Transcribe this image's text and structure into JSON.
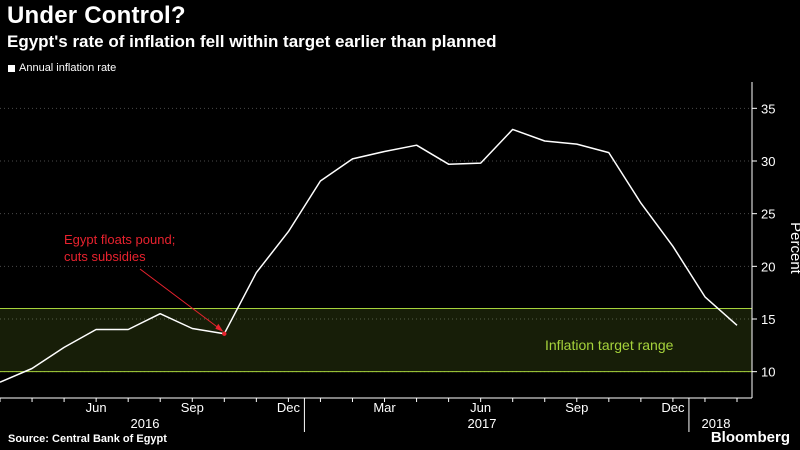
{
  "chart_data": {
    "type": "line",
    "title": "Under Control?",
    "subtitle": "Egypt's rate of inflation fell within target earlier than planned",
    "ylabel": "Percent",
    "ylim": [
      7.5,
      37.5
    ],
    "yticks": [
      10,
      15,
      20,
      25,
      30,
      35
    ],
    "grid": "horizontal-dotted",
    "legend": "top-left",
    "series": [
      {
        "name": "Annual inflation rate",
        "color": "#ffffff",
        "x": [
          "2016-03",
          "2016-04",
          "2016-05",
          "2016-06",
          "2016-07",
          "2016-08",
          "2016-09",
          "2016-10",
          "2016-11",
          "2016-12",
          "2017-01",
          "2017-02",
          "2017-03",
          "2017-04",
          "2017-05",
          "2017-06",
          "2017-07",
          "2017-08",
          "2017-09",
          "2017-10",
          "2017-11",
          "2017-12",
          "2018-01",
          "2018-02"
        ],
        "values": [
          9.0,
          10.3,
          12.3,
          14.0,
          14.0,
          15.5,
          14.1,
          13.6,
          19.4,
          23.3,
          28.1,
          30.2,
          30.9,
          31.5,
          29.7,
          29.8,
          33.0,
          31.9,
          31.6,
          30.8,
          26.0,
          21.9,
          17.1,
          14.4
        ]
      }
    ],
    "x_tick_labels": [
      "Jun",
      "Sep",
      "Dec",
      "Mar",
      "Jun",
      "Sep",
      "Dec"
    ],
    "x_tick_dates": [
      "2016-06",
      "2016-09",
      "2016-12",
      "2017-03",
      "2017-06",
      "2017-09",
      "2017-12"
    ],
    "year_labels": [
      "2016",
      "2017",
      "2018"
    ],
    "target_band": {
      "low": 10,
      "high": 16,
      "label": "Inflation target range",
      "color": "#a6d33b"
    },
    "annotation": {
      "lines": [
        "Egypt floats pound;",
        "cuts subsidies"
      ],
      "at": "2016-10",
      "color": "#e8222e"
    }
  },
  "footer": {
    "source": "Source: Central Bank of Egypt",
    "brand": "Bloomberg"
  }
}
